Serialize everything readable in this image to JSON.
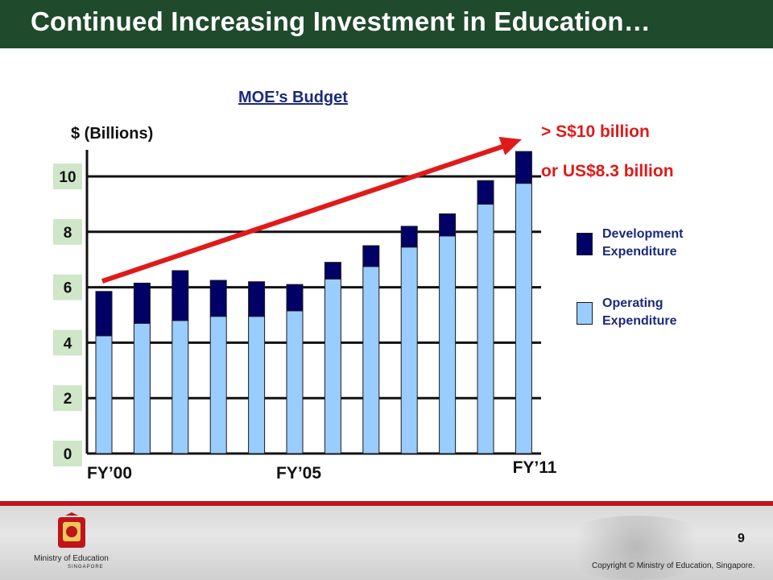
{
  "header": {
    "title": "Continued Increasing Investment in Education…"
  },
  "chart_data": {
    "type": "bar",
    "stacked": true,
    "title": "MOE’s Budget",
    "ylabel": "$ (Billions)",
    "ylim": [
      0,
      10
    ],
    "y_ticks": [
      "0",
      "2",
      "4",
      "6",
      "8",
      "10"
    ],
    "x_tick_labels": [
      "FY’00",
      "FY’05",
      "FY’11"
    ],
    "categories": [
      "FY00",
      "FY01",
      "FY02",
      "FY03",
      "FY04",
      "FY05",
      "FY06",
      "FY07",
      "FY08",
      "FY09",
      "FY10",
      "FY11"
    ],
    "series": [
      {
        "name": "Operating Expenditure",
        "color": "#99ccff",
        "values": [
          4.25,
          4.7,
          4.8,
          4.95,
          4.95,
          5.15,
          6.3,
          6.75,
          7.45,
          7.85,
          9.0,
          9.75
        ]
      },
      {
        "name": "Development Expenditure",
        "color": "#000066",
        "values": [
          1.6,
          1.45,
          1.8,
          1.3,
          1.25,
          0.95,
          0.6,
          0.75,
          0.75,
          0.8,
          0.85,
          1.15
        ]
      }
    ],
    "annotations": [
      "> S$10 billion",
      "or US$8.3 billion"
    ],
    "trend_arrow_color": "#e01a1a",
    "legend_position": "right",
    "grid": true
  },
  "footer": {
    "logo_text": "Ministry of Education",
    "logo_subtext": "SINGAPORE",
    "page_number": "9",
    "copyright": "Copyright © Ministry of Education, Singapore."
  }
}
